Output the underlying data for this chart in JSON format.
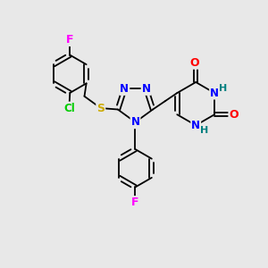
{
  "bg_color": "#e8e8e8",
  "atom_colors": {
    "N": "#0000ff",
    "O": "#ff0000",
    "S": "#ccaa00",
    "F": "#ff00ff",
    "Cl": "#00cc00",
    "H": "#008080"
  },
  "bw": 1.3
}
